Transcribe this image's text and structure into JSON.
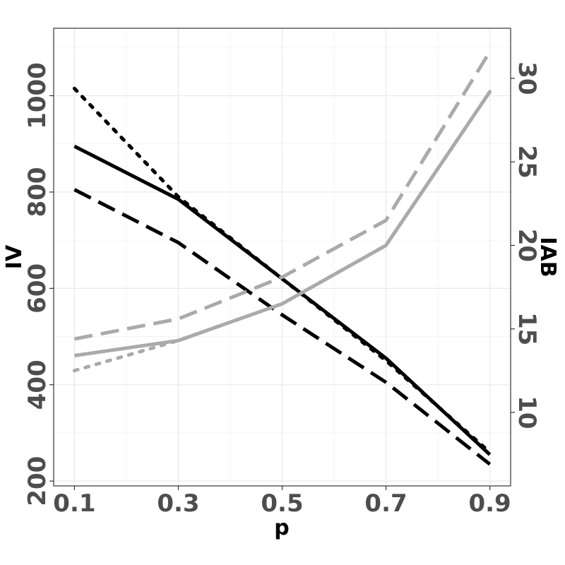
{
  "chart_data": {
    "type": "line",
    "x_axis": {
      "label": "p",
      "ticks": [
        0.1,
        0.3,
        0.5,
        0.7,
        0.9
      ],
      "tick_labels": [
        "0.1",
        "0.3",
        "0.5",
        "0.7",
        "0.9"
      ],
      "range": [
        0.06,
        0.94
      ]
    },
    "y_left": {
      "label": "IV",
      "ticks": [
        200,
        400,
        600,
        800,
        1000
      ],
      "tick_labels": [
        "200",
        "400",
        "600",
        "800",
        "1000"
      ],
      "range": [
        190,
        1140
      ]
    },
    "y_right": {
      "label": "IAB",
      "ticks": [
        10,
        15,
        20,
        25,
        30
      ],
      "tick_labels": [
        "10",
        "15",
        "20",
        "25",
        "30"
      ],
      "range": [
        5.6,
        33.0
      ]
    },
    "x": [
      0.1,
      0.3,
      0.5,
      0.7,
      0.9
    ],
    "series": [
      {
        "axis": "left",
        "color": "#000000",
        "style": "solid",
        "values": [
          895,
          785,
          620,
          455,
          255
        ]
      },
      {
        "axis": "left",
        "color": "#000000",
        "style": "dashed",
        "values": [
          805,
          695,
          545,
          405,
          235
        ]
      },
      {
        "axis": "left",
        "color": "#000000",
        "style": "dotted",
        "values": [
          1015,
          790,
          620,
          450,
          260
        ]
      },
      {
        "axis": "right",
        "color": "#aaaaaa",
        "style": "solid",
        "values": [
          13.4,
          14.3,
          16.5,
          20.0,
          29.2
        ]
      },
      {
        "axis": "right",
        "color": "#aaaaaa",
        "style": "dashed",
        "values": [
          14.4,
          15.6,
          18.1,
          21.5,
          31.6
        ]
      },
      {
        "axis": "right",
        "color": "#aaaaaa",
        "style": "dotted",
        "values": [
          12.5,
          14.3,
          16.5,
          20.0,
          29.2
        ]
      }
    ],
    "grid": true,
    "legend": "none"
  }
}
